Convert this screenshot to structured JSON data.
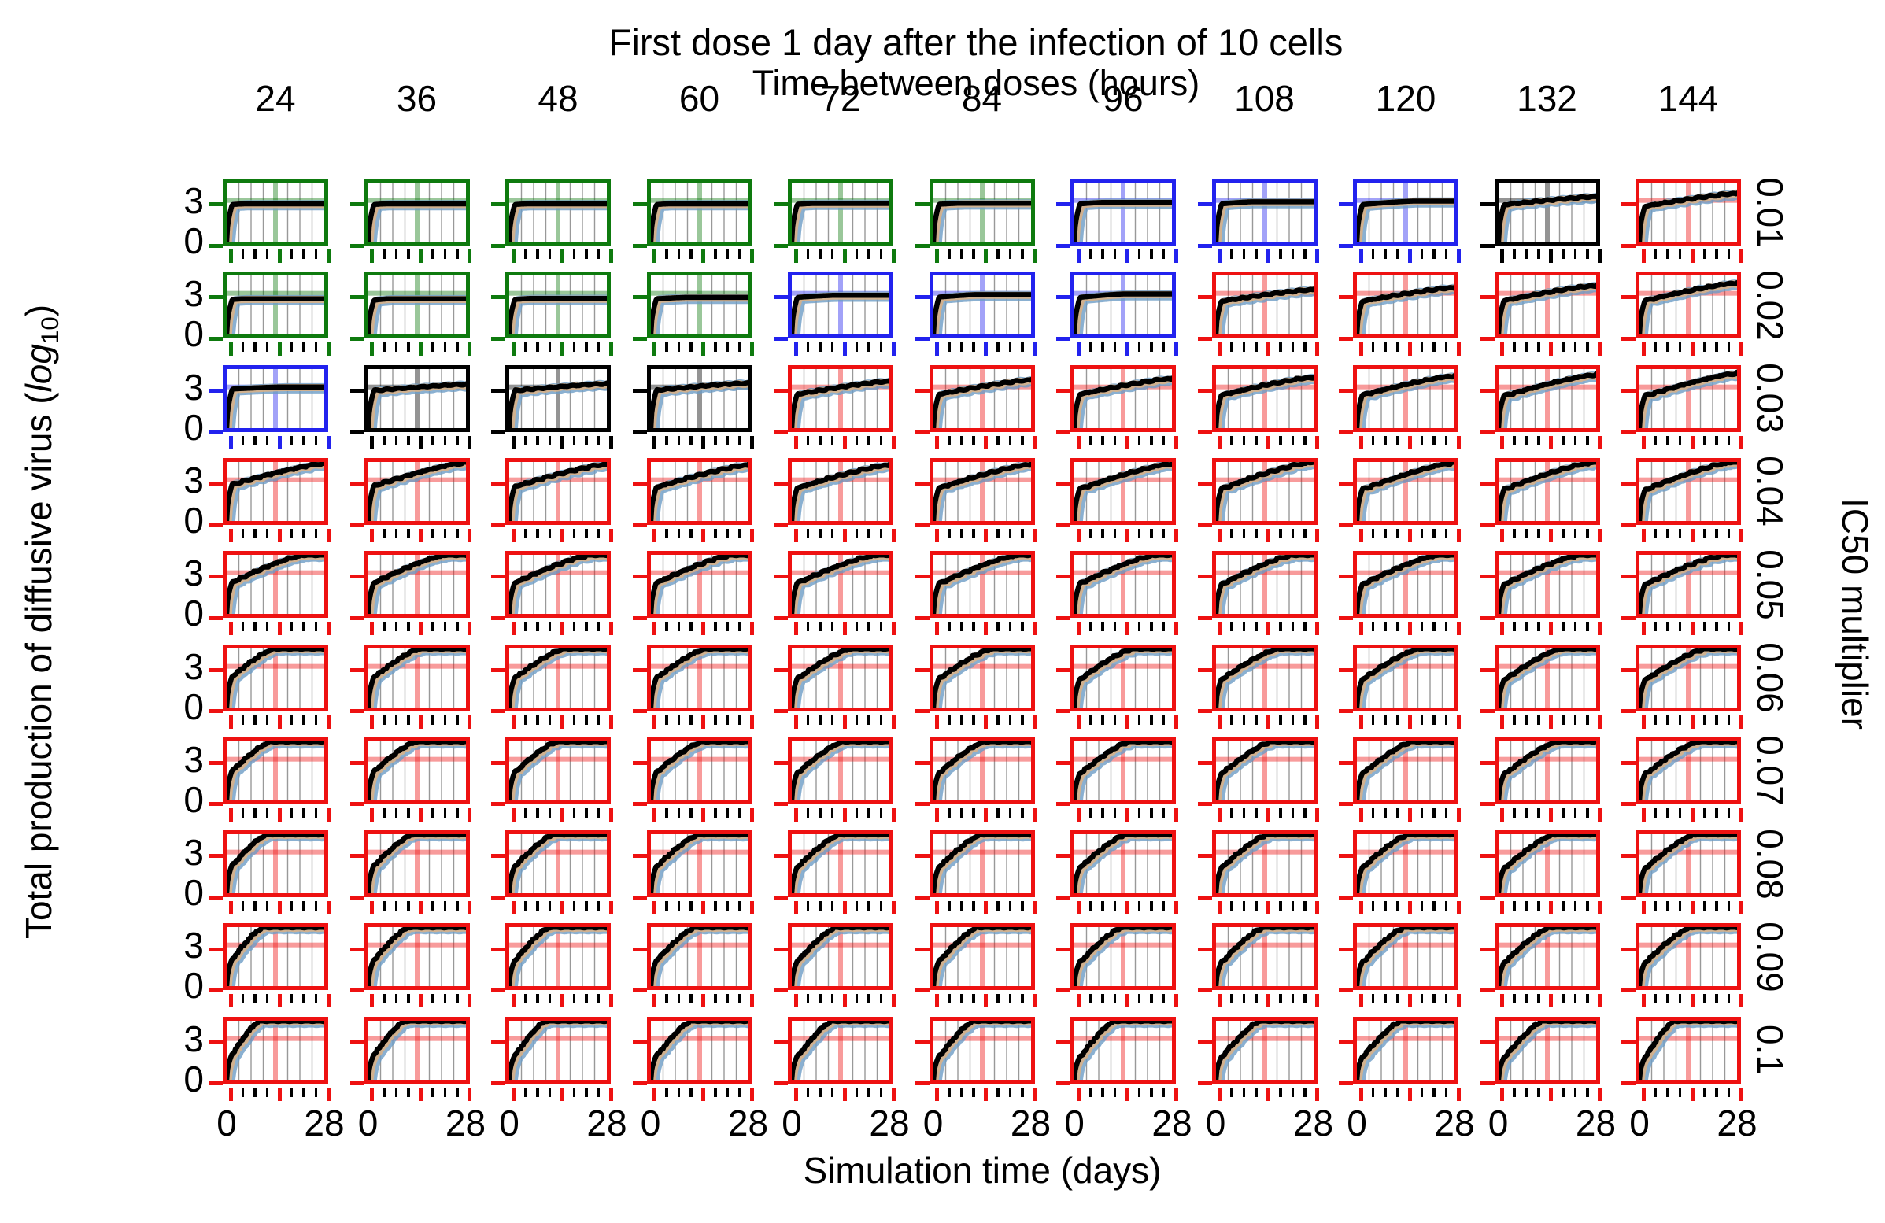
{
  "chart_data": {
    "type": "line",
    "layout": "small-multiples-grid",
    "title": "First dose 1 day after the infection of 10 cells",
    "subtitle": "Time between doses (hours)",
    "xlabel": "Simulation time (days)",
    "ylabel": {
      "prefix": "Total production of diffusive virus (",
      "log": "log",
      "sub": "10",
      "suffix": ")"
    },
    "right_axis_label": "IC50 multiplier",
    "columns": [
      "24",
      "36",
      "48",
      "60",
      "72",
      "84",
      "96",
      "108",
      "120",
      "132",
      "144"
    ],
    "rows": [
      "0.01",
      "0.02",
      "0.03",
      "0.04",
      "0.05",
      "0.06",
      "0.07",
      "0.08",
      "0.09",
      "0.1"
    ],
    "xlim": [
      0,
      28
    ],
    "ylim": [
      0,
      4.3
    ],
    "x_tick_labels": [
      "0",
      "28"
    ],
    "y_tick_labels": [
      "3",
      "0"
    ],
    "x_major_ticks": [
      0,
      14,
      28
    ],
    "x_minor_ticks": [
      3.5,
      7,
      10.5,
      17.5,
      21,
      24.5
    ],
    "y_major_ticks": [
      0,
      3
    ],
    "crosshair": {
      "x": 14,
      "y": 3
    },
    "grid_on": true,
    "colors": {
      "green": "#0e7a0e",
      "blue": "#2222ee",
      "black": "#000000",
      "red": "#ee1111",
      "curve": "#000000",
      "band_blue": "#6d9cc6",
      "band_orange": "#ddb184",
      "gridline": "#999999",
      "minor_tick": "#000000"
    },
    "border_colors": [
      [
        "green",
        "green",
        "green",
        "green",
        "green",
        "green",
        "blue",
        "blue",
        "blue",
        "black",
        "red"
      ],
      [
        "green",
        "green",
        "green",
        "green",
        "blue",
        "blue",
        "blue",
        "red",
        "red",
        "red",
        "red"
      ],
      [
        "blue",
        "black",
        "black",
        "black",
        "red",
        "red",
        "red",
        "red",
        "red",
        "red",
        "red"
      ],
      [
        "red",
        "red",
        "red",
        "red",
        "red",
        "red",
        "red",
        "red",
        "red",
        "red",
        "red"
      ],
      [
        "red",
        "red",
        "red",
        "red",
        "red",
        "red",
        "red",
        "red",
        "red",
        "red",
        "red"
      ],
      [
        "red",
        "red",
        "red",
        "red",
        "red",
        "red",
        "red",
        "red",
        "red",
        "red",
        "red"
      ],
      [
        "red",
        "red",
        "red",
        "red",
        "red",
        "red",
        "red",
        "red",
        "red",
        "red",
        "red"
      ],
      [
        "red",
        "red",
        "red",
        "red",
        "red",
        "red",
        "red",
        "red",
        "red",
        "red",
        "red"
      ],
      [
        "red",
        "red",
        "red",
        "red",
        "red",
        "red",
        "red",
        "red",
        "red",
        "red",
        "red"
      ],
      [
        "red",
        "red",
        "red",
        "red",
        "red",
        "red",
        "red",
        "red",
        "red",
        "red",
        "red"
      ]
    ],
    "cell_params_legend": "per subplot: [level_after_initial_rapid_rise_log10, level_at_day_28_log10, day_final_level_reached] ; median curve rises from 0, shaded bands (band_blue, band_orange) track it",
    "cells": [
      [
        [
          2.7,
          2.75,
          5
        ],
        [
          2.7,
          2.75,
          5
        ],
        [
          2.7,
          2.75,
          5
        ],
        [
          2.7,
          2.75,
          5
        ],
        [
          2.72,
          2.78,
          6
        ],
        [
          2.72,
          2.8,
          8
        ],
        [
          2.75,
          2.85,
          8
        ],
        [
          2.75,
          2.9,
          10
        ],
        [
          2.7,
          2.95,
          16
        ],
        [
          2.7,
          3.3,
          28
        ],
        [
          2.6,
          3.55,
          28
        ]
      ],
      [
        [
          2.55,
          2.6,
          5
        ],
        [
          2.5,
          2.6,
          6
        ],
        [
          2.55,
          2.62,
          6
        ],
        [
          2.6,
          2.7,
          10
        ],
        [
          2.7,
          2.85,
          12
        ],
        [
          2.72,
          2.9,
          12
        ],
        [
          2.7,
          2.95,
          14
        ],
        [
          2.45,
          3.3,
          28
        ],
        [
          2.45,
          3.45,
          28
        ],
        [
          2.5,
          3.6,
          28
        ],
        [
          2.5,
          3.8,
          28
        ]
      ],
      [
        [
          2.85,
          3.0,
          16
        ],
        [
          2.75,
          3.2,
          28
        ],
        [
          2.75,
          3.25,
          28
        ],
        [
          2.78,
          3.3,
          28
        ],
        [
          2.5,
          3.45,
          28
        ],
        [
          2.5,
          3.55,
          28
        ],
        [
          2.5,
          3.65,
          28
        ],
        [
          2.45,
          3.75,
          28
        ],
        [
          2.45,
          3.85,
          28
        ],
        [
          2.4,
          3.95,
          28
        ],
        [
          2.4,
          4.05,
          28
        ]
      ],
      [
        [
          2.7,
          4.25,
          28
        ],
        [
          2.6,
          4.28,
          27
        ],
        [
          2.55,
          4.2,
          28
        ],
        [
          2.5,
          4.15,
          28
        ],
        [
          2.45,
          4.15,
          28
        ],
        [
          2.45,
          4.2,
          28
        ],
        [
          2.4,
          4.25,
          28
        ],
        [
          2.4,
          4.28,
          26
        ],
        [
          2.35,
          4.28,
          27
        ],
        [
          2.35,
          4.28,
          26
        ],
        [
          2.3,
          4.28,
          25
        ]
      ],
      [
        [
          2.35,
          4.28,
          21
        ],
        [
          2.3,
          4.28,
          21
        ],
        [
          2.3,
          4.28,
          22
        ],
        [
          2.3,
          4.28,
          22
        ],
        [
          2.3,
          4.28,
          23
        ],
        [
          2.25,
          4.28,
          23
        ],
        [
          2.25,
          4.28,
          22
        ],
        [
          2.2,
          4.28,
          21
        ],
        [
          2.2,
          4.28,
          22
        ],
        [
          2.2,
          4.28,
          22
        ],
        [
          2.2,
          4.28,
          23
        ]
      ],
      [
        [
          2.3,
          4.28,
          13
        ],
        [
          2.25,
          4.28,
          14
        ],
        [
          2.2,
          4.28,
          15
        ],
        [
          2.2,
          4.28,
          15
        ],
        [
          2.15,
          4.28,
          16
        ],
        [
          2.15,
          4.28,
          16
        ],
        [
          2.1,
          4.28,
          16
        ],
        [
          2.1,
          4.28,
          17
        ],
        [
          2.1,
          4.28,
          17
        ],
        [
          2.05,
          4.28,
          17
        ],
        [
          2.05,
          4.28,
          18
        ]
      ],
      [
        [
          2.2,
          4.28,
          12
        ],
        [
          2.15,
          4.28,
          13
        ],
        [
          2.1,
          4.28,
          13
        ],
        [
          2.1,
          4.28,
          14
        ],
        [
          2.05,
          4.28,
          14
        ],
        [
          2.05,
          4.28,
          14
        ],
        [
          2.0,
          4.28,
          15
        ],
        [
          2.0,
          4.28,
          15
        ],
        [
          2.0,
          4.28,
          15
        ],
        [
          1.95,
          4.28,
          16
        ],
        [
          1.95,
          4.28,
          16
        ]
      ],
      [
        [
          2.1,
          4.28,
          11
        ],
        [
          2.05,
          4.28,
          12
        ],
        [
          2.0,
          4.28,
          12
        ],
        [
          2.0,
          4.28,
          13
        ],
        [
          1.95,
          4.28,
          13
        ],
        [
          1.95,
          4.28,
          13
        ],
        [
          1.9,
          4.28,
          14
        ],
        [
          1.9,
          4.28,
          14
        ],
        [
          1.9,
          4.28,
          14
        ],
        [
          1.85,
          4.28,
          15
        ],
        [
          1.85,
          4.28,
          15
        ]
      ],
      [
        [
          2.0,
          4.28,
          10
        ],
        [
          1.95,
          4.28,
          11
        ],
        [
          1.9,
          4.28,
          11
        ],
        [
          1.9,
          4.28,
          12
        ],
        [
          1.85,
          4.28,
          12
        ],
        [
          1.85,
          4.28,
          12
        ],
        [
          1.8,
          4.28,
          13
        ],
        [
          1.8,
          4.28,
          13
        ],
        [
          1.8,
          4.28,
          13
        ],
        [
          1.75,
          4.28,
          14
        ],
        [
          1.75,
          4.28,
          14
        ]
      ],
      [
        [
          1.9,
          4.28,
          9
        ],
        [
          1.85,
          4.28,
          10
        ],
        [
          1.8,
          4.28,
          10
        ],
        [
          1.8,
          4.28,
          11
        ],
        [
          1.75,
          4.28,
          11
        ],
        [
          1.75,
          4.28,
          11
        ],
        [
          1.7,
          4.28,
          11
        ],
        [
          1.7,
          4.28,
          12
        ],
        [
          1.7,
          4.28,
          12
        ],
        [
          1.65,
          4.28,
          12
        ],
        [
          1.65,
          4.28,
          9.5
        ]
      ]
    ]
  }
}
